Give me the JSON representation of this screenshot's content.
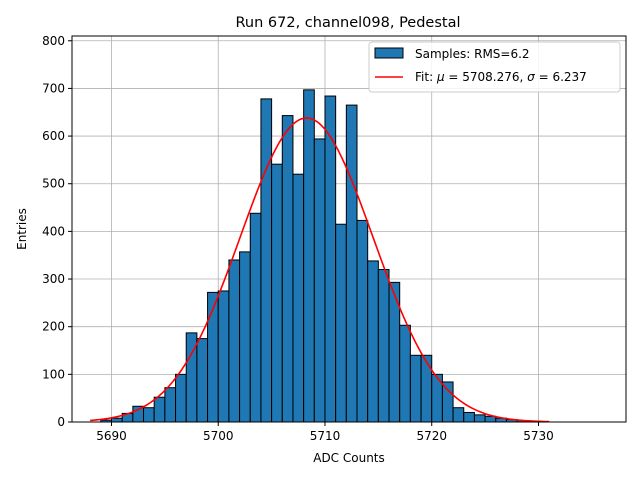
{
  "chart_data": {
    "type": "bar",
    "title": "Run 672, channel098, Pedestal",
    "xlabel": "ADC Counts",
    "ylabel": "Entries",
    "xlim": [
      5686.3,
      5738.2
    ],
    "ylim": [
      0,
      810
    ],
    "xticks": [
      5690,
      5700,
      5710,
      5720,
      5730
    ],
    "yticks": [
      0,
      100,
      200,
      300,
      400,
      500,
      600,
      700,
      800
    ],
    "grid": true,
    "legend_position": "top-right",
    "bin_width": 1,
    "bin_start": 5688,
    "histogram": {
      "name": "Samples: RMS=6.2",
      "color": "#1f77b4",
      "values": [
        0,
        4,
        8,
        18,
        33,
        30,
        52,
        72,
        100,
        187,
        175,
        272,
        275,
        340,
        357,
        438,
        678,
        541,
        643,
        520,
        697,
        594,
        684,
        415,
        665,
        423,
        338,
        320,
        293,
        203,
        140,
        140,
        100,
        84,
        30,
        20,
        15,
        12,
        8,
        5,
        3,
        2
      ]
    },
    "fit": {
      "name": "Fit: μ = 5708.276, σ = 6.237",
      "color": "#ff0000",
      "mu": 5708.276,
      "sigma": 6.237,
      "amplitude": 638,
      "x_range": [
        5688,
        5731
      ]
    }
  }
}
